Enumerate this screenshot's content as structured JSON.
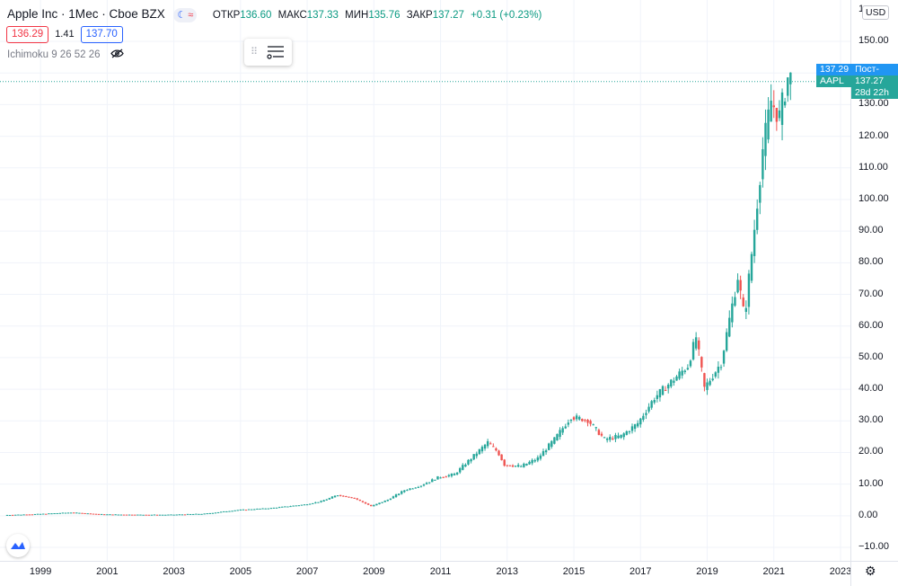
{
  "header": {
    "title": "Apple Inc · 1Мес · Cboe BZX",
    "ohlc": {
      "open_label": "ОТКР",
      "open": "136.60",
      "high_label": "МАКС",
      "high": "137.33",
      "low_label": "МИН",
      "low": "135.76",
      "close_label": "ЗАКР",
      "close": "137.27",
      "change": "+0.31 (+0.23%)"
    },
    "bid": "136.29",
    "spread": "1.41",
    "ask": "137.70",
    "indicator": "Ichimoku 9 26 52 26"
  },
  "price_axis": {
    "currency": "USD",
    "top_label": "1",
    "labels": [
      "150.00",
      "140.00",
      "130.00",
      "120.00",
      "110.00",
      "100.00",
      "90.00",
      "80.00",
      "70.00",
      "60.00",
      "50.00",
      "40.00",
      "30.00",
      "20.00",
      "10.00",
      "0.00",
      "−10.00"
    ],
    "post_tag_label": "Пост-",
    "post_tag_value": "137.29",
    "symbol_tag_label": "AAPL",
    "symbol_tag_value": "137.27",
    "countdown": "28d 22h"
  },
  "time_axis": {
    "labels": [
      "1999",
      "2001",
      "2003",
      "2005",
      "2007",
      "2009",
      "2011",
      "2013",
      "2015",
      "2017",
      "2019",
      "2021",
      "2023"
    ]
  },
  "colors": {
    "up": "#26a69a",
    "down": "#ef5350",
    "accent": "#2962ff",
    "post_tag": "#2196f3",
    "symbol_tag": "#26a69a"
  },
  "chart_data": {
    "type": "candlestick",
    "interval": "1 month",
    "ylim": [
      -14,
      162
    ],
    "x": [
      "1998",
      "1999",
      "2000",
      "2001",
      "2002",
      "2003",
      "2004",
      "2005",
      "2006",
      "2007",
      "2007.5",
      "2008",
      "2008.5",
      "2009",
      "2009.5",
      "2010",
      "2010.5",
      "2011",
      "2011.5",
      "2012",
      "2012.5",
      "2012.8",
      "2013",
      "2013.5",
      "2014",
      "2014.5",
      "2015",
      "2015.5",
      "2016",
      "2016.5",
      "2017",
      "2017.5",
      "2018",
      "2018.5",
      "2018.75",
      "2019",
      "2019.5",
      "2020",
      "2020.2",
      "2020.5",
      "2020.75",
      "2021",
      "2021.25",
      "2021.5"
    ],
    "y": [
      0.2,
      0.5,
      1.0,
      0.4,
      0.3,
      0.3,
      0.6,
      1.8,
      2.4,
      3.5,
      4.5,
      6.5,
      5.5,
      3.0,
      5.0,
      8.0,
      9.5,
      12.0,
      13.0,
      18.0,
      23.0,
      20.0,
      16.0,
      15.5,
      18.0,
      24.0,
      31.0,
      30.0,
      24.0,
      25.0,
      29.0,
      37.0,
      42.0,
      47.0,
      56.0,
      40.0,
      48.0,
      75.0,
      62.0,
      90.0,
      115.0,
      130.0,
      125.0,
      137.27
    ]
  }
}
